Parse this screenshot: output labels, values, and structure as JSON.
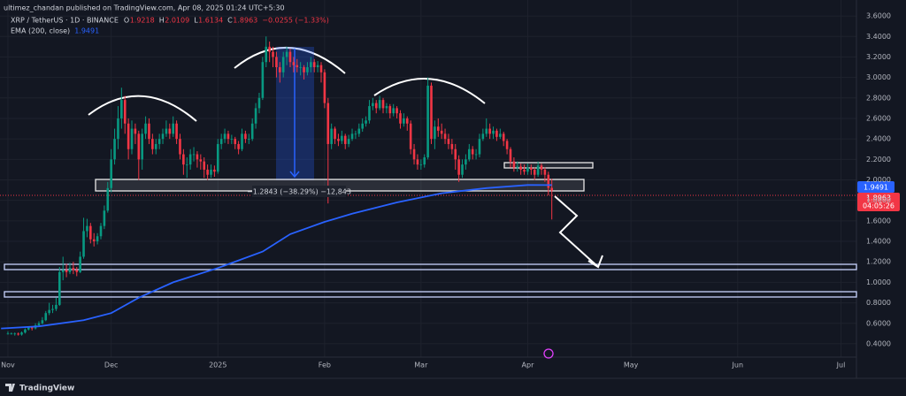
{
  "chart_data": {
    "type": "candlestick",
    "publisher": "ultimez_chandan published on TradingView.com, Apr 08, 2025 01:24 UTC+5:30",
    "symbol": "XRP / TetherUS · 1D · BINANCE",
    "ohlc_legend": [
      {
        "key": "O",
        "value": "1.9218"
      },
      {
        "key": "H",
        "value": "2.0109"
      },
      {
        "key": "L",
        "value": "1.6134"
      },
      {
        "key": "C",
        "value": "1.8963"
      }
    ],
    "change": "−0.0255 (−1.33%)",
    "countdown": "04:05:26",
    "measure_label": "−1.2843 (−38.29%) −12,843",
    "brand": "TradingView",
    "up_color": "#089981",
    "down_color": "#f23645",
    "grid": true,
    "xlim": [
      -2.3,
      246.5
    ],
    "xticks": [
      {
        "value": 0,
        "label": "Nov"
      },
      {
        "value": 30,
        "label": "Dec"
      },
      {
        "value": 61,
        "label": "2025"
      },
      {
        "value": 92,
        "label": "Feb"
      },
      {
        "value": 120,
        "label": "Mar"
      },
      {
        "value": 151,
        "label": "Apr"
      },
      {
        "value": 181,
        "label": "May"
      },
      {
        "value": 212,
        "label": "Jun"
      },
      {
        "value": 242,
        "label": "Jul"
      }
    ],
    "ylim": [
      0.27,
      3.756
    ],
    "yticks": [
      {
        "value": 0.4,
        "label": "0.4000"
      },
      {
        "value": 0.6,
        "label": "0.6000"
      },
      {
        "value": 0.8,
        "label": "0.8000"
      },
      {
        "value": 1.0,
        "label": "1.0000"
      },
      {
        "value": 1.2,
        "label": "1.2000"
      },
      {
        "value": 1.4,
        "label": "1.4000"
      },
      {
        "value": 1.6,
        "label": "1.6000"
      },
      {
        "value": 1.8,
        "label": "1.8000"
      },
      {
        "value": 2.0,
        "label": "2.0000"
      },
      {
        "value": 2.2,
        "label": "2.2000"
      },
      {
        "value": 2.4,
        "label": "2.4000"
      },
      {
        "value": 2.6,
        "label": "2.6000"
      },
      {
        "value": 2.8,
        "label": "2.8000"
      },
      {
        "value": 3.0,
        "label": "3.0000"
      },
      {
        "value": 3.2,
        "label": "3.2000"
      },
      {
        "value": 3.4,
        "label": "3.4000"
      },
      {
        "value": 3.6,
        "label": "3.6000"
      }
    ],
    "x": [
      0,
      1,
      2,
      3,
      4,
      5,
      6,
      7,
      8,
      9,
      10,
      11,
      12,
      13,
      14,
      15,
      16,
      17,
      18,
      19,
      20,
      21,
      22,
      23,
      24,
      25,
      26,
      27,
      28,
      29,
      30,
      31,
      32,
      33,
      34,
      35,
      36,
      37,
      38,
      39,
      40,
      41,
      42,
      43,
      44,
      45,
      46,
      47,
      48,
      49,
      50,
      51,
      52,
      53,
      54,
      55,
      56,
      57,
      58,
      59,
      60,
      61,
      62,
      63,
      64,
      65,
      66,
      67,
      68,
      69,
      70,
      71,
      72,
      73,
      74,
      75,
      76,
      77,
      78,
      79,
      80,
      81,
      82,
      83,
      84,
      85,
      86,
      87,
      88,
      89,
      90,
      91,
      92,
      93,
      94,
      95,
      96,
      97,
      98,
      99,
      100,
      101,
      102,
      103,
      104,
      105,
      106,
      107,
      108,
      109,
      110,
      111,
      112,
      113,
      114,
      115,
      116,
      117,
      118,
      119,
      120,
      121,
      122,
      123,
      124,
      125,
      126,
      127,
      128,
      129,
      130,
      131,
      132,
      133,
      134,
      135,
      136,
      137,
      138,
      139,
      140,
      141,
      142,
      143,
      144,
      145,
      146,
      147,
      148,
      149,
      150,
      151,
      152,
      153,
      154,
      155,
      156,
      157,
      158
    ],
    "candles": [
      [
        0.5,
        0.52,
        0.49,
        0.5
      ],
      [
        0.5,
        0.51,
        0.49,
        0.5
      ],
      [
        0.5,
        0.51,
        0.48,
        0.5
      ],
      [
        0.5,
        0.51,
        0.48,
        0.49
      ],
      [
        0.49,
        0.52,
        0.48,
        0.51
      ],
      [
        0.51,
        0.55,
        0.5,
        0.54
      ],
      [
        0.54,
        0.57,
        0.53,
        0.56
      ],
      [
        0.56,
        0.57,
        0.53,
        0.55
      ],
      [
        0.55,
        0.6,
        0.54,
        0.58
      ],
      [
        0.58,
        0.62,
        0.57,
        0.6
      ],
      [
        0.6,
        0.66,
        0.59,
        0.63
      ],
      [
        0.63,
        0.72,
        0.62,
        0.7
      ],
      [
        0.7,
        0.8,
        0.68,
        0.73
      ],
      [
        0.73,
        0.78,
        0.7,
        0.74
      ],
      [
        0.74,
        0.85,
        0.72,
        0.78
      ],
      [
        0.78,
        1.15,
        0.77,
        1.1
      ],
      [
        1.1,
        1.25,
        1.02,
        1.12
      ],
      [
        1.12,
        1.18,
        1.05,
        1.1
      ],
      [
        1.1,
        1.19,
        1.08,
        1.14
      ],
      [
        1.14,
        1.2,
        1.08,
        1.12
      ],
      [
        1.12,
        1.15,
        1.06,
        1.1
      ],
      [
        1.1,
        1.3,
        1.09,
        1.25
      ],
      [
        1.25,
        1.63,
        1.23,
        1.5
      ],
      [
        1.5,
        1.62,
        1.44,
        1.55
      ],
      [
        1.55,
        1.58,
        1.38,
        1.42
      ],
      [
        1.42,
        1.48,
        1.35,
        1.4
      ],
      [
        1.4,
        1.48,
        1.37,
        1.45
      ],
      [
        1.45,
        1.58,
        1.42,
        1.55
      ],
      [
        1.55,
        1.75,
        1.52,
        1.7
      ],
      [
        1.7,
        1.98,
        1.68,
        1.92
      ],
      [
        1.92,
        2.3,
        1.88,
        2.2
      ],
      [
        2.2,
        2.5,
        2.15,
        2.4
      ],
      [
        2.4,
        2.72,
        2.3,
        2.6
      ],
      [
        2.6,
        2.9,
        2.5,
        2.78
      ],
      [
        2.78,
        2.82,
        2.45,
        2.55
      ],
      [
        2.55,
        2.6,
        2.2,
        2.3
      ],
      [
        2.3,
        2.58,
        2.25,
        2.5
      ],
      [
        2.5,
        2.55,
        2.35,
        2.45
      ],
      [
        2.45,
        2.48,
        2.0,
        2.2
      ],
      [
        2.2,
        2.5,
        2.1,
        2.45
      ],
      [
        2.45,
        2.62,
        2.4,
        2.55
      ],
      [
        2.55,
        2.6,
        2.35,
        2.4
      ],
      [
        2.4,
        2.45,
        2.25,
        2.3
      ],
      [
        2.3,
        2.4,
        2.25,
        2.35
      ],
      [
        2.35,
        2.45,
        2.3,
        2.4
      ],
      [
        2.4,
        2.5,
        2.35,
        2.45
      ],
      [
        2.45,
        2.58,
        2.42,
        2.5
      ],
      [
        2.5,
        2.55,
        2.4,
        2.45
      ],
      [
        2.45,
        2.62,
        2.42,
        2.55
      ],
      [
        2.55,
        2.58,
        2.35,
        2.4
      ],
      [
        2.4,
        2.45,
        2.2,
        2.25
      ],
      [
        2.25,
        2.3,
        2.05,
        2.15
      ],
      [
        2.15,
        2.22,
        2.02,
        2.15
      ],
      [
        2.15,
        2.3,
        2.1,
        2.25
      ],
      [
        2.25,
        2.32,
        2.18,
        2.25
      ],
      [
        2.25,
        2.28,
        2.12,
        2.2
      ],
      [
        2.2,
        2.25,
        2.1,
        2.18
      ],
      [
        2.18,
        2.22,
        2.02,
        2.1
      ],
      [
        2.1,
        2.15,
        2.0,
        2.05
      ],
      [
        2.05,
        2.15,
        2.02,
        2.1
      ],
      [
        2.1,
        2.14,
        2.03,
        2.08
      ],
      [
        2.08,
        2.4,
        2.06,
        2.35
      ],
      [
        2.35,
        2.45,
        2.3,
        2.4
      ],
      [
        2.4,
        2.5,
        2.36,
        2.45
      ],
      [
        2.45,
        2.48,
        2.35,
        2.4
      ],
      [
        2.4,
        2.44,
        2.35,
        2.4
      ],
      [
        2.4,
        2.42,
        2.3,
        2.35
      ],
      [
        2.35,
        2.38,
        2.25,
        2.3
      ],
      [
        2.3,
        2.5,
        2.28,
        2.45
      ],
      [
        2.45,
        2.48,
        2.36,
        2.4
      ],
      [
        2.4,
        2.45,
        2.35,
        2.4
      ],
      [
        2.4,
        2.6,
        2.38,
        2.55
      ],
      [
        2.55,
        2.75,
        2.5,
        2.7
      ],
      [
        2.7,
        2.85,
        2.65,
        2.8
      ],
      [
        2.8,
        3.2,
        2.78,
        3.15
      ],
      [
        3.15,
        3.4,
        3.1,
        3.3
      ],
      [
        3.3,
        3.35,
        3.15,
        3.25
      ],
      [
        3.25,
        3.3,
        3.1,
        3.2
      ],
      [
        3.2,
        3.25,
        3.0,
        3.1
      ],
      [
        3.1,
        3.15,
        2.95,
        3.05
      ],
      [
        3.05,
        3.25,
        3.0,
        3.2
      ],
      [
        3.2,
        3.3,
        3.12,
        3.25
      ],
      [
        3.25,
        3.28,
        3.1,
        3.15
      ],
      [
        3.15,
        3.2,
        3.05,
        3.12
      ],
      [
        3.12,
        3.18,
        3.05,
        3.1
      ],
      [
        3.1,
        3.15,
        3.02,
        3.1
      ],
      [
        3.1,
        3.12,
        2.98,
        3.05
      ],
      [
        3.05,
        3.15,
        3.02,
        3.1
      ],
      [
        3.1,
        3.2,
        3.05,
        3.15
      ],
      [
        3.15,
        3.18,
        3.05,
        3.1
      ],
      [
        3.1,
        3.16,
        3.05,
        3.12
      ],
      [
        3.12,
        3.15,
        2.95,
        3.05
      ],
      [
        3.05,
        3.08,
        2.7,
        2.75
      ],
      [
        2.75,
        2.8,
        1.77,
        2.35
      ],
      [
        2.35,
        2.55,
        2.3,
        2.5
      ],
      [
        2.5,
        2.52,
        2.35,
        2.4
      ],
      [
        2.4,
        2.45,
        2.33,
        2.38
      ],
      [
        2.38,
        2.48,
        2.35,
        2.43
      ],
      [
        2.43,
        2.45,
        2.3,
        2.35
      ],
      [
        2.35,
        2.44,
        2.32,
        2.4
      ],
      [
        2.4,
        2.5,
        2.38,
        2.45
      ],
      [
        2.45,
        2.48,
        2.4,
        2.45
      ],
      [
        2.45,
        2.55,
        2.42,
        2.5
      ],
      [
        2.5,
        2.6,
        2.47,
        2.55
      ],
      [
        2.55,
        2.62,
        2.52,
        2.58
      ],
      [
        2.58,
        2.78,
        2.55,
        2.72
      ],
      [
        2.72,
        2.8,
        2.68,
        2.75
      ],
      [
        2.75,
        2.78,
        2.65,
        2.7
      ],
      [
        2.7,
        2.82,
        2.68,
        2.78
      ],
      [
        2.78,
        2.8,
        2.65,
        2.7
      ],
      [
        2.7,
        2.75,
        2.65,
        2.72
      ],
      [
        2.72,
        2.74,
        2.6,
        2.65
      ],
      [
        2.65,
        2.74,
        2.62,
        2.7
      ],
      [
        2.7,
        2.72,
        2.6,
        2.65
      ],
      [
        2.65,
        2.68,
        2.5,
        2.55
      ],
      [
        2.55,
        2.65,
        2.52,
        2.6
      ],
      [
        2.6,
        2.62,
        2.48,
        2.55
      ],
      [
        2.55,
        2.58,
        2.25,
        2.3
      ],
      [
        2.3,
        2.35,
        2.15,
        2.2
      ],
      [
        2.2,
        2.25,
        2.1,
        2.15
      ],
      [
        2.15,
        2.2,
        2.1,
        2.15
      ],
      [
        2.15,
        2.25,
        2.12,
        2.22
      ],
      [
        2.22,
        3.0,
        2.2,
        2.92
      ],
      [
        2.92,
        2.95,
        2.35,
        2.4
      ],
      [
        2.4,
        2.58,
        2.3,
        2.52
      ],
      [
        2.52,
        2.6,
        2.42,
        2.48
      ],
      [
        2.48,
        2.55,
        2.4,
        2.45
      ],
      [
        2.45,
        2.5,
        2.35,
        2.4
      ],
      [
        2.4,
        2.45,
        2.3,
        2.35
      ],
      [
        2.35,
        2.4,
        2.25,
        2.3
      ],
      [
        2.3,
        2.35,
        2.1,
        2.2
      ],
      [
        2.2,
        2.24,
        1.98,
        2.05
      ],
      [
        2.05,
        2.2,
        2.02,
        2.15
      ],
      [
        2.15,
        2.25,
        2.1,
        2.2
      ],
      [
        2.2,
        2.35,
        2.18,
        2.3
      ],
      [
        2.3,
        2.33,
        2.2,
        2.25
      ],
      [
        2.25,
        2.3,
        2.2,
        2.25
      ],
      [
        2.25,
        2.45,
        2.22,
        2.4
      ],
      [
        2.4,
        2.5,
        2.38,
        2.45
      ],
      [
        2.45,
        2.6,
        2.42,
        2.5
      ],
      [
        2.5,
        2.55,
        2.4,
        2.45
      ],
      [
        2.45,
        2.52,
        2.4,
        2.48
      ],
      [
        2.48,
        2.5,
        2.38,
        2.42
      ],
      [
        2.42,
        2.5,
        2.4,
        2.45
      ],
      [
        2.45,
        2.47,
        2.33,
        2.38
      ],
      [
        2.38,
        2.4,
        2.25,
        2.3
      ],
      [
        2.3,
        2.32,
        2.12,
        2.18
      ],
      [
        2.18,
        2.22,
        2.08,
        2.12
      ],
      [
        2.12,
        2.18,
        2.08,
        2.13
      ],
      [
        2.13,
        2.16,
        2.05,
        2.1
      ],
      [
        2.1,
        2.15,
        2.05,
        2.08
      ],
      [
        2.08,
        2.16,
        2.05,
        2.12
      ],
      [
        2.12,
        2.15,
        2.05,
        2.1
      ],
      [
        2.1,
        2.12,
        2.0,
        2.05
      ],
      [
        2.05,
        2.18,
        2.03,
        2.14
      ],
      [
        2.14,
        2.16,
        2.05,
        2.1
      ],
      [
        2.1,
        2.12,
        1.98,
        2.05
      ],
      [
        2.05,
        2.08,
        1.85,
        1.9218
      ],
      [
        1.9218,
        2.0109,
        1.6134,
        1.8963
      ]
    ],
    "ema": {
      "name": "EMA (200, close)",
      "color": "#2962ff",
      "x": [
        -2,
        9,
        22,
        30,
        38,
        48,
        61,
        74,
        82,
        92,
        100,
        113,
        126,
        139,
        151,
        158
      ],
      "values": [
        0.55,
        0.57,
        0.63,
        0.7,
        0.85,
        1.0,
        1.14,
        1.3,
        1.47,
        1.59,
        1.67,
        1.78,
        1.87,
        1.92,
        1.95,
        1.9491
      ]
    }
  }
}
